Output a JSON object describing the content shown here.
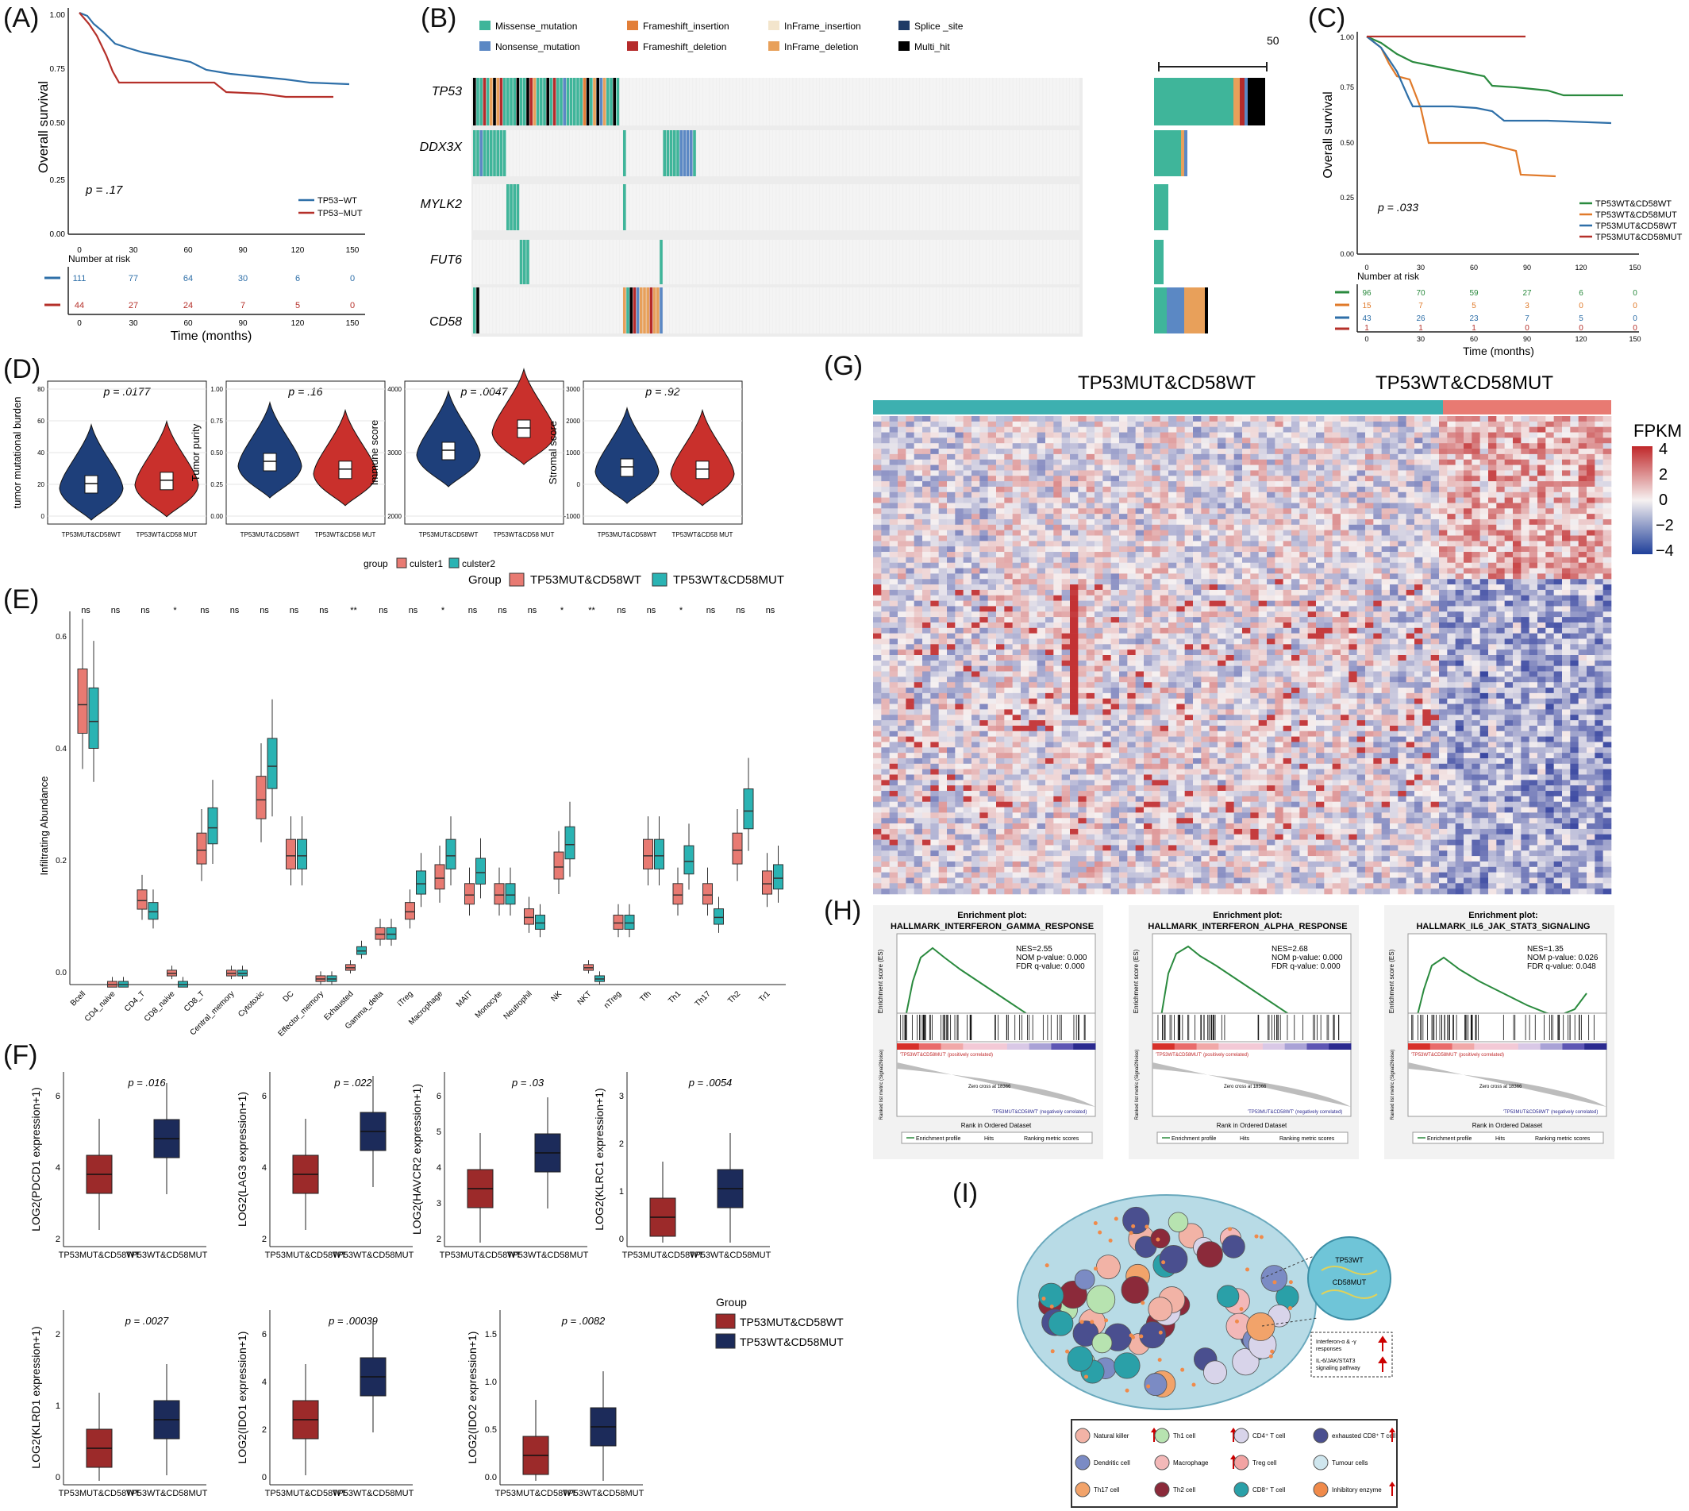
{
  "panels": {
    "A": {
      "label": "(A)",
      "ylabel": "Overall survival",
      "xlabel": "Time (months)",
      "pval": "p = .17",
      "risk_title": "Number at risk",
      "xticks": [
        "0",
        "30",
        "60",
        "90",
        "120",
        "150"
      ],
      "yticks": [
        "0.00",
        "0.25",
        "0.50",
        "0.75",
        "1.00"
      ],
      "legend": [
        "TP53−WT",
        "TP53−MUT"
      ],
      "colors": [
        "#2e6fa8",
        "#b5302a"
      ],
      "risk": [
        [
          "111",
          "77",
          "64",
          "30",
          "6",
          "0"
        ],
        [
          "44",
          "27",
          "24",
          "7",
          "5",
          "0"
        ]
      ]
    },
    "B": {
      "label": "(B)",
      "legend": [
        "Missense_mutation",
        "Frameshift_insertion",
        "InFrame_insertion",
        "Splice _site",
        "Nonsense_mutation",
        "Frameshift_deletion",
        "InFrame_deletion",
        "Multi_hit"
      ],
      "legend_colors": [
        "#3fb59a",
        "#e27e38",
        "#f3e5cc",
        "#1f3b66",
        "#5b88c4",
        "#b52a2a",
        "#e8a05a",
        "#000000"
      ],
      "genes": [
        "TP53",
        "DDX3X",
        "MYLK2",
        "FUT6",
        "CD58"
      ],
      "scale_label": "50"
    },
    "C": {
      "label": "(C)",
      "ylabel": "Overall survival",
      "xlabel": "Time (months)",
      "pval": "p = .033",
      "risk_title": "Number at risk",
      "xticks": [
        "0",
        "30",
        "60",
        "90",
        "120",
        "150"
      ],
      "yticks": [
        "0.00",
        "0.25",
        "0.50",
        "0.75",
        "1.00"
      ],
      "legend": [
        "TP53WT&CD58WT",
        "TP53WT&CD58MUT",
        "TP53MUT&CD58WT",
        "TP53MUT&CD58MUT"
      ],
      "colors": [
        "#2a8a3e",
        "#e07a2a",
        "#2e6fa8",
        "#b5302a"
      ],
      "risk": [
        [
          "96",
          "70",
          "59",
          "27",
          "6",
          "0"
        ],
        [
          "15",
          "7",
          "5",
          "3",
          "0",
          "0"
        ],
        [
          "43",
          "26",
          "23",
          "7",
          "5",
          "0"
        ],
        [
          "1",
          "1",
          "1",
          "0",
          "0",
          "0"
        ]
      ]
    },
    "D": {
      "label": "(D)",
      "plots": [
        {
          "ylabel": "tumor mutational burden",
          "pval": "p = .0177",
          "yticks": [
            "0",
            "20",
            "40",
            "60",
            "80"
          ]
        },
        {
          "ylabel": "Tumor purity",
          "pval": "p = .16",
          "yticks": [
            "0.00",
            "0.25",
            "0.50",
            "0.75",
            "1.00"
          ]
        },
        {
          "ylabel": "Immune score",
          "pval": "p = .0047",
          "yticks": [
            "2000",
            "3000",
            "4000"
          ]
        },
        {
          "ylabel": "Stromal score",
          "pval": "p = .92",
          "yticks": [
            "-1000",
            "0",
            "1000",
            "2000",
            "3000"
          ]
        }
      ],
      "xcats": [
        "TP53MUT&CD58WT",
        "TP53WT&CD58 MUT"
      ],
      "colors": [
        "#1e3f7a",
        "#c9302c"
      ],
      "legend1_title": "group",
      "legend1": [
        "culster1",
        "culster2"
      ],
      "legend2_title": "Group",
      "legend2": [
        "TP53MUT&CD58WT",
        "TP53WT&CD58MUT"
      ]
    },
    "E": {
      "label": "(E)",
      "ylabel": "Infiltrating Abundance",
      "yticks": [
        "0.0",
        "0.2",
        "0.4",
        "0.6"
      ],
      "colors": [
        "#e87a72",
        "#2ab3b3"
      ],
      "cells": [
        "Bcell",
        "CD4_naive",
        "CD4_T",
        "CD8_naive",
        "CD8_T",
        "Central_memory",
        "Cytotoxic",
        "DC",
        "Effector_memory",
        "Exhausted",
        "Gamma_delta",
        "iTreg",
        "Macrophage",
        "MAIT",
        "Monocyte",
        "Neutrophil",
        "NK",
        "NKT",
        "nTreg",
        "Tfh",
        "Th1",
        "Th17",
        "Th2",
        "Tr1"
      ],
      "sig": [
        "ns",
        "ns",
        "ns",
        "*",
        "ns",
        "ns",
        "ns",
        "ns",
        "ns",
        "**",
        "ns",
        "ns",
        "*",
        "ns",
        "ns",
        "ns",
        "*",
        "**",
        "ns",
        "ns",
        "*",
        "ns",
        "ns",
        "ns"
      ]
    },
    "F": {
      "label": "(F)",
      "plots": [
        {
          "ylabel": "LOG2(PDCD1 expression+1)",
          "pval": "p = .016",
          "yticks": [
            "2",
            "4",
            "6"
          ]
        },
        {
          "ylabel": "LOG2(LAG3 expression+1)",
          "pval": "p = .022",
          "yticks": [
            "2",
            "4",
            "6"
          ]
        },
        {
          "ylabel": "LOG2(HAVCR2 expression+1)",
          "pval": "p = .03",
          "yticks": [
            "2",
            "3",
            "4",
            "5",
            "6"
          ]
        },
        {
          "ylabel": "LOG2(KLRC1 expression+1)",
          "pval": "p = .0054",
          "yticks": [
            "0",
            "1",
            "2",
            "3"
          ]
        },
        {
          "ylabel": "LOG2(KLRD1 expression+1)",
          "pval": "p = .0027",
          "yticks": [
            "0",
            "1",
            "2"
          ]
        },
        {
          "ylabel": "LOG2(IDO1 expression+1)",
          "pval": "p = .00039",
          "yticks": [
            "0",
            "2",
            "4",
            "6"
          ]
        },
        {
          "ylabel": "LOG2(IDO2 expression+1)",
          "pval": "p = .0082",
          "yticks": [
            "0.0",
            "0.5",
            "1.0",
            "1.5"
          ]
        }
      ],
      "xcats": [
        "TP53MUT&CD58WT",
        "TP53WT&CD58MUT"
      ],
      "colors": [
        "#9c2a2a",
        "#1c2b5a"
      ],
      "legend_title": "Group",
      "legend": [
        "TP53MUT&CD58WT",
        "TP53WT&CD58MUT"
      ]
    },
    "G": {
      "label": "(G)",
      "groups": [
        "TP53MUT&CD58WT",
        "TP53WT&CD58MUT"
      ],
      "group_colors": [
        "#3db0b0",
        "#e87a72"
      ],
      "scale_title": "FPKM",
      "scale_ticks": [
        "4",
        "2",
        "0",
        "−2",
        "−4"
      ]
    },
    "H": {
      "label": "(H)",
      "plots": [
        {
          "title1": "Enrichment plot:",
          "title2": "HALLMARK_INTERFERON_GAMMA_RESPONSE",
          "stats": [
            "NES=2.55",
            "NOM p-value: 0.000",
            "FDR q-value: 0.000"
          ]
        },
        {
          "title1": "Enrichment plot:",
          "title2": "HALLMARK_INTERFERON_ALPHA_RESPONSE",
          "stats": [
            "NES=2.68",
            "NOM p-value: 0.000",
            "FDR q-value: 0.000"
          ]
        },
        {
          "title1": "Enrichment plot:",
          "title2": "HALLMARK_IL6_JAK_STAT3_SIGNALING",
          "stats": [
            "NES=1.35",
            "NOM p-value: 0.026",
            "FDR q-value: 0.048"
          ]
        }
      ],
      "es_label": "Enrichment score (ES)",
      "rank_label": "Rank in Ordered Dataset",
      "metric_label": "Ranked list metric (Signal2Noise)",
      "pos_label": "'TP53WT&CD58MUT' (positively correlated)",
      "neg_label": "'TP53MUT&CD58WT' (negatively correlated)",
      "zero_cross": "Zero cross at 18366",
      "legend": [
        "Enrichment profile",
        "Hits",
        "Ranking metric scores"
      ]
    },
    "I": {
      "label": "(I)",
      "inset": [
        "TP53WT",
        "CD58MUT"
      ],
      "box_lines": [
        "Interferon-α & -γ",
        "responses",
        "IL-6/JAK/STAT3",
        "signaling pathway"
      ],
      "legend": [
        "Natural killer",
        "Th1 cell",
        "CD4⁺ T cell",
        "exhausted CD8⁺ T cell",
        "Dendritic cell",
        "Macrophage",
        "Treg cell",
        "Tumour cells",
        "Th17 cell",
        "Th2 cell",
        "CD8⁺ T cell",
        "Inhibitory enzyme"
      ]
    }
  }
}
